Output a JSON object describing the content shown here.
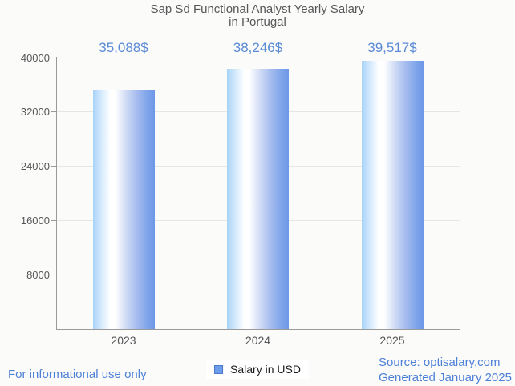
{
  "title": "Sap Sd Functional Analyst Yearly Salary\nin Portugal",
  "chart_data": {
    "type": "bar",
    "title": "Sap Sd Functional Analyst Yearly Salary in Portugal",
    "categories": [
      "2023",
      "2024",
      "2025"
    ],
    "values": [
      35088,
      38246,
      39517
    ],
    "value_labels": [
      "35,088$",
      "38,246$",
      "39,517$"
    ],
    "xlabel": "",
    "ylabel": "",
    "ylim": [
      0,
      40000
    ],
    "y_ticks": [
      8000,
      16000,
      24000,
      32000,
      40000
    ],
    "y_tick_labels": [
      "8000",
      "16000",
      "24000",
      "32000",
      "40000"
    ],
    "grid": true,
    "legend_entries": [
      "Salary in USD"
    ],
    "legend_position": "bottom",
    "bar_gradient": [
      "#a7d3f8",
      "#ffffff",
      "#6e97e8"
    ],
    "value_label_color": "#5a8ad6"
  },
  "legend": {
    "label": "Salary in USD",
    "swatch_color": "#6d9ceb"
  },
  "footer": {
    "left_note": "For informational use only",
    "source": "Source: optisalary.com",
    "generated": "Generated January 2025"
  },
  "colors": {
    "background": "#fbfbf9",
    "title_text": "#57575a",
    "axis_line": "#9a9a9a",
    "gridline": "#e6e6e3",
    "footer_text": "#4d80d8"
  }
}
